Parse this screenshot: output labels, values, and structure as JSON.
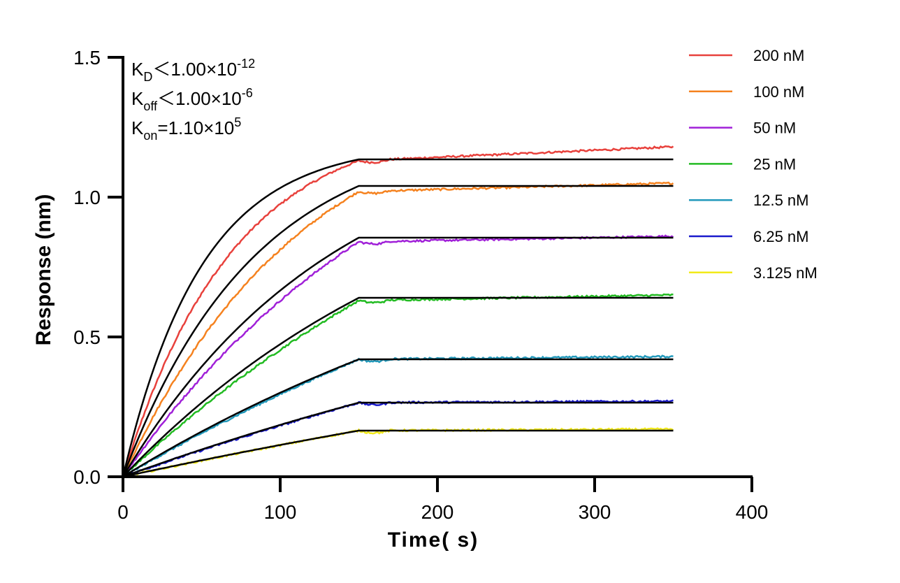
{
  "chart_data": {
    "type": "line",
    "xlabel": "Time( s)",
    "ylabel": "Response (nm)",
    "xlim": [
      0,
      400
    ],
    "ylim": [
      0,
      1.5
    ],
    "x_ticks": [
      "0",
      "100",
      "200",
      "300",
      "400"
    ],
    "y_ticks": [
      "0.0",
      "0.5",
      "1.0",
      "1.5"
    ],
    "grid": false,
    "legend_position": "top-right",
    "annotations": {
      "kd": {
        "base": "K",
        "sub": "D",
        "rel": "＜",
        "mant": "1.00×10",
        "exp": "-12"
      },
      "koff": {
        "base": "K",
        "sub": "off",
        "rel": "＜",
        "mant": "1.00×10",
        "exp": "-6"
      },
      "kon": {
        "base": "K",
        "sub": "on",
        "rel": "=",
        "mant": "1.10×10",
        "exp": "5"
      }
    },
    "association_end": 150,
    "dissociation_end": 350,
    "series": [
      {
        "name": "200 nM",
        "color": "#e8413c",
        "plateau_measured": 1.13,
        "final_measured": 1.18,
        "plateau_fit": 1.135,
        "curvature": 3.0
      },
      {
        "name": "100 nM",
        "color": "#f5821f",
        "plateau_measured": 1.02,
        "final_measured": 1.05,
        "plateau_fit": 1.04,
        "curvature": 1.8
      },
      {
        "name": "50 nM",
        "color": "#a020d8",
        "plateau_measured": 0.84,
        "final_measured": 0.86,
        "plateau_fit": 0.855,
        "curvature": 1.1
      },
      {
        "name": "25 nM",
        "color": "#22bb22",
        "plateau_measured": 0.63,
        "final_measured": 0.65,
        "plateau_fit": 0.64,
        "curvature": 0.7
      },
      {
        "name": "12.5 nM",
        "color": "#2299bb",
        "plateau_measured": 0.42,
        "final_measured": 0.43,
        "plateau_fit": 0.42,
        "curvature": 0.45
      },
      {
        "name": "6.25 nM",
        "color": "#1a1acc",
        "plateau_measured": 0.265,
        "final_measured": 0.27,
        "plateau_fit": 0.265,
        "curvature": 0.3
      },
      {
        "name": "3.125 nM",
        "color": "#f2ea1a",
        "plateau_measured": 0.165,
        "final_measured": 0.17,
        "plateau_fit": 0.165,
        "curvature": 0.2
      }
    ]
  }
}
